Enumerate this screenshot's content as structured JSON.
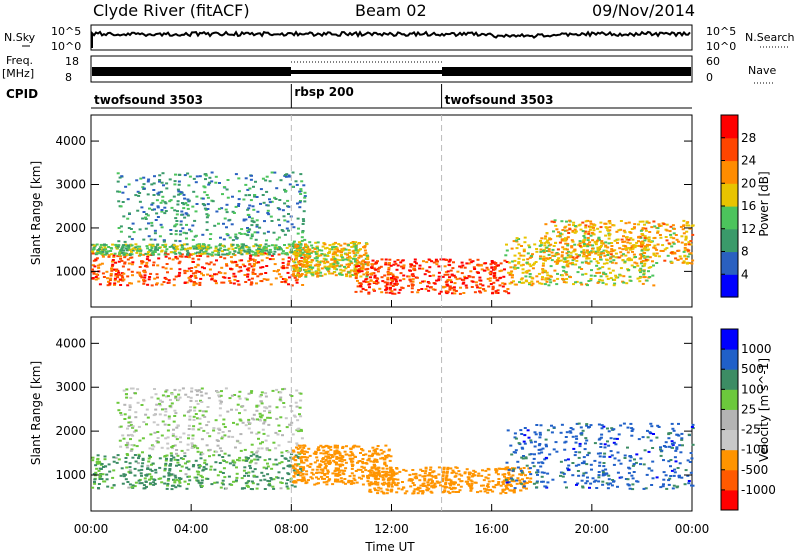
{
  "header": {
    "station": "Clyde River (fitACF)",
    "beam": "Beam 02",
    "date": "09/Nov/2014"
  },
  "strips": {
    "nsky_label": "N.Sky",
    "nsky_ticks": [
      "10^5",
      "10^0"
    ],
    "nsearch_label": "N.Search",
    "nsearch_ticks": [
      "10^5",
      "10^0"
    ],
    "freq_label": "Freq.",
    "freq_unit": "[MHz]",
    "freq_ticks": [
      "18",
      "8"
    ],
    "nave_label": "Nave",
    "nave_ticks": [
      "60",
      "0"
    ],
    "cpid_label": "CPID",
    "cpid_segments": [
      {
        "name": "twofsound 3503",
        "start_h": 0,
        "end_h": 8
      },
      {
        "name": "rbsp 200",
        "start_h": 8,
        "end_h": 14
      },
      {
        "name": "twofsound 3503",
        "start_h": 14,
        "end_h": 24
      }
    ]
  },
  "chart_data": [
    {
      "type": "heatmap",
      "panel": "power",
      "xlabel": "Time UT",
      "ylabel": "Slant Range [km]",
      "xlim": [
        0,
        24
      ],
      "ylim": [
        180,
        4600
      ],
      "x_ticks": [
        "00:00",
        "04:00",
        "08:00",
        "12:00",
        "16:00",
        "20:00",
        "00:00"
      ],
      "y_ticks": [
        1000,
        2000,
        3000,
        4000
      ],
      "colorbar": {
        "label": "Power [dB]",
        "range": [
          0,
          32
        ],
        "ticks": [
          "28",
          "24",
          "20",
          "16",
          "12",
          "8",
          "4"
        ],
        "colors": [
          "#0000ff",
          "#2a60c0",
          "#3a9a6a",
          "#4cc45c",
          "#e8c400",
          "#ff8c00",
          "#ff4500",
          "#ff0000"
        ]
      },
      "scatter_bands": [
        {
          "t0": 0.0,
          "t1": 8.4,
          "r0": 700,
          "r1": 1450,
          "value": 26
        },
        {
          "t0": 0.0,
          "t1": 8.4,
          "r0": 1400,
          "r1": 1650,
          "value": 14
        },
        {
          "t0": 8.0,
          "t1": 11.0,
          "r0": 900,
          "r1": 1700,
          "value": 18
        },
        {
          "t0": 10.5,
          "t1": 16.8,
          "r0": 500,
          "r1": 1300,
          "value": 27
        },
        {
          "t0": 16.5,
          "t1": 22.5,
          "r0": 700,
          "r1": 1800,
          "value": 18
        },
        {
          "t0": 18.0,
          "t1": 24.0,
          "r0": 1200,
          "r1": 2200,
          "value": 20
        },
        {
          "t0": 1.0,
          "t1": 8.5,
          "r0": 1700,
          "r1": 3300,
          "value": 10
        }
      ]
    },
    {
      "type": "heatmap",
      "panel": "velocity",
      "xlabel": "Time UT",
      "ylabel": "Slant Range [km]",
      "xlim": [
        0,
        24
      ],
      "ylim": [
        180,
        4600
      ],
      "x_ticks": [
        "00:00",
        "04:00",
        "08:00",
        "12:00",
        "16:00",
        "20:00",
        "00:00"
      ],
      "y_ticks": [
        1000,
        2000,
        3000,
        4000
      ],
      "colorbar": {
        "label": "Velocity [m s^-1]",
        "ticks": [
          "1000",
          "500",
          "100",
          "25",
          "-25",
          "-100",
          "-500",
          "-1000"
        ],
        "colors": [
          "#ff0000",
          "#ff5a00",
          "#ff9400",
          "#c8c8c8",
          "#b4b4b4",
          "#6cc83c",
          "#3c8c64",
          "#2060c8",
          "#0000ff"
        ]
      },
      "scatter_bands": [
        {
          "t0": 0.0,
          "t1": 8.4,
          "r0": 700,
          "r1": 1500,
          "value": 120
        },
        {
          "t0": 1.0,
          "t1": 8.4,
          "r0": 1500,
          "r1": 3000,
          "value": 0
        },
        {
          "t0": 8.0,
          "t1": 12.0,
          "r0": 800,
          "r1": 1700,
          "value": -300
        },
        {
          "t0": 11.0,
          "t1": 17.5,
          "r0": 600,
          "r1": 1200,
          "value": -250
        },
        {
          "t0": 16.5,
          "t1": 24.0,
          "r0": 700,
          "r1": 2200,
          "value": 700
        }
      ]
    }
  ]
}
